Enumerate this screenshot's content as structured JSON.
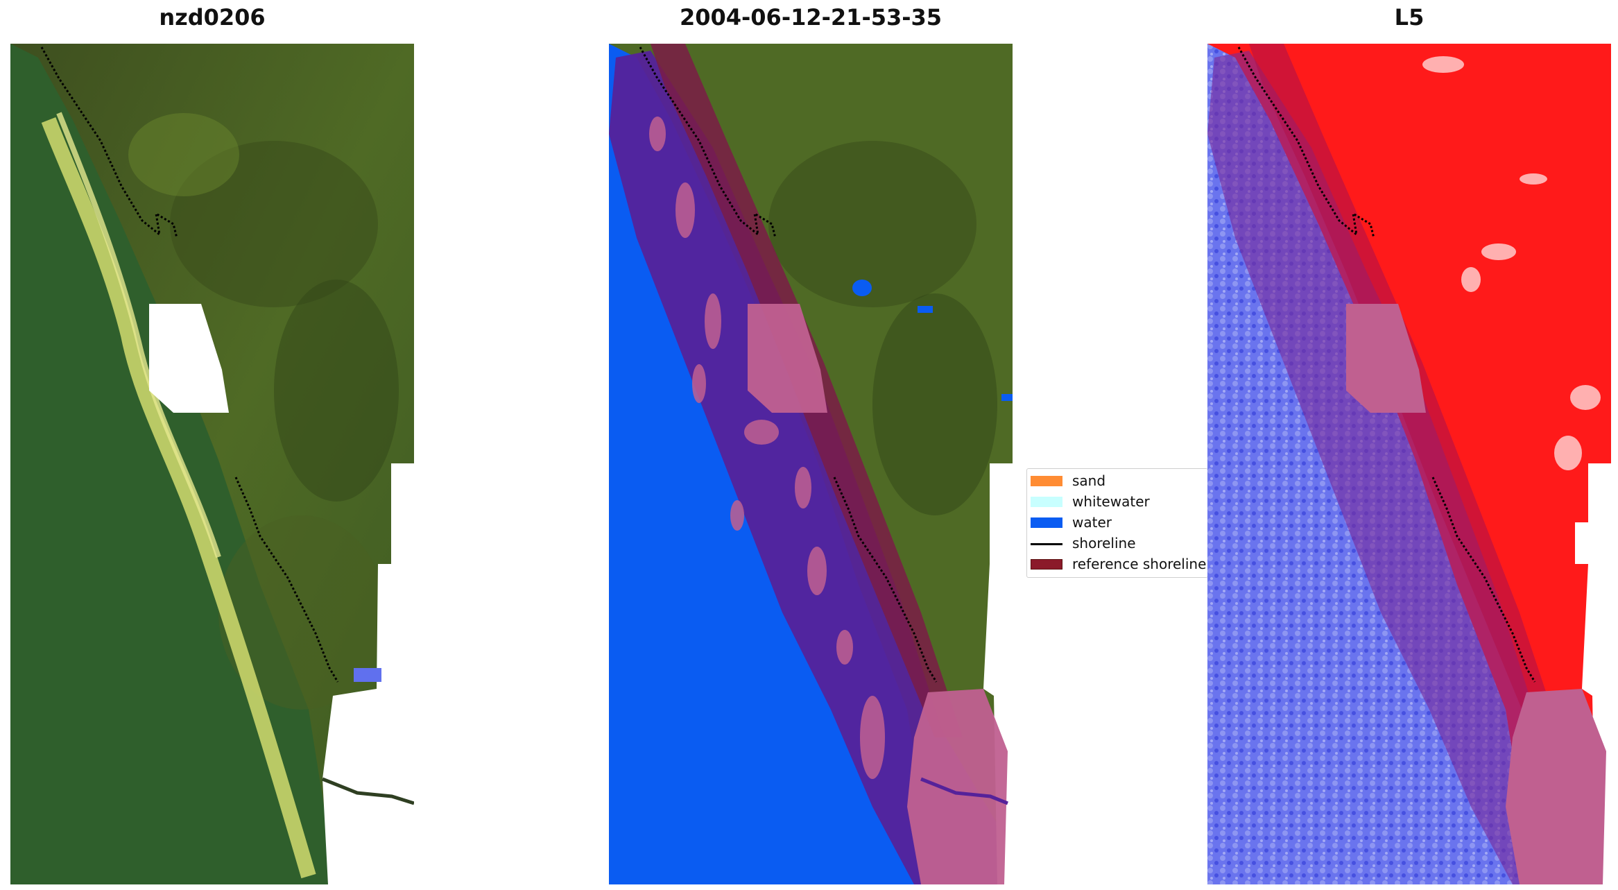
{
  "titles": {
    "left": "nzd0206",
    "middle": "2004-06-12-21-53-35",
    "right": "L5"
  },
  "legend": {
    "items": [
      {
        "label": "sand",
        "color": "#ff8c33",
        "kind": "patch"
      },
      {
        "label": "whitewater",
        "color": "#c8ffff",
        "kind": "patch"
      },
      {
        "label": "water",
        "color": "#0a5cf2",
        "kind": "patch"
      },
      {
        "label": "shoreline",
        "color": "#000000",
        "kind": "line"
      },
      {
        "label": "reference shoreline",
        "color": "#8b1a2a",
        "kind": "patch"
      }
    ]
  },
  "colors": {
    "land": "#3f5a22",
    "ocean_rgb": "#2f5f2c",
    "classified_water": "#0a5cf2",
    "buffer_purple": "#55229a",
    "reference_band": "#7a1c46",
    "cloud_mask": "#ffffff",
    "index_land": "#ff1a1a",
    "index_water": "#5a66e8",
    "pink_overlay": "#c06090"
  }
}
